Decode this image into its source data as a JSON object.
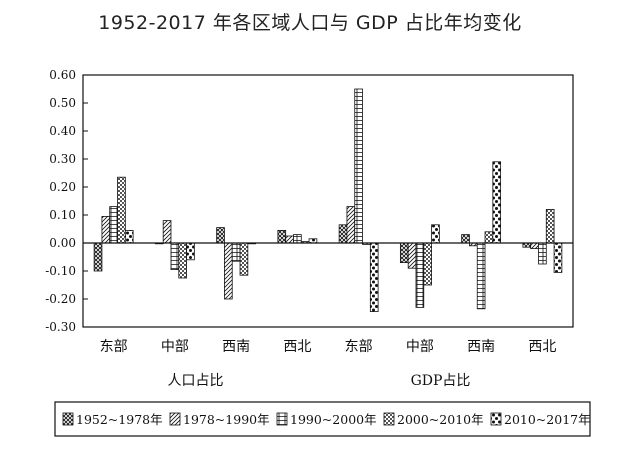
{
  "title": "1952-2017 年各区域人口与 GDP 占比年均变化",
  "chart_data": {
    "type": "bar",
    "title": "1952-2017 年各区域人口与 GDP 占比年均变化",
    "ylim": [
      -0.3,
      0.6
    ],
    "yticks": [
      "0.60",
      "0.50",
      "0.40",
      "0.30",
      "0.20",
      "0.10",
      "0.00",
      "-0.10",
      "-0.20",
      "-0.30"
    ],
    "ytick_values": [
      0.6,
      0.5,
      0.4,
      0.3,
      0.2,
      0.1,
      0.0,
      -0.1,
      -0.2,
      -0.3
    ],
    "grid": false,
    "legend_position": "bottom",
    "groups": [
      {
        "label": "人口占比",
        "categories": [
          "东部",
          "中部",
          "西南",
          "西北"
        ]
      },
      {
        "label": "GDP占比",
        "categories": [
          "东部",
          "中部",
          "西南",
          "西北"
        ]
      }
    ],
    "categories": [
      "东部",
      "中部",
      "西南",
      "西北",
      "东部",
      "中部",
      "西南",
      "西北"
    ],
    "series": [
      {
        "name": "1952~1978年",
        "pattern": "crosshatch",
        "values": [
          -0.1,
          0.0,
          0.055,
          0.045,
          0.065,
          -0.07,
          0.03,
          -0.015
        ]
      },
      {
        "name": "1978~1990年",
        "pattern": "diagonal",
        "values": [
          0.095,
          0.08,
          -0.2,
          0.025,
          0.13,
          -0.09,
          -0.01,
          -0.02
        ]
      },
      {
        "name": "1990~2000年",
        "pattern": "horizontal",
        "values": [
          0.13,
          -0.095,
          -0.065,
          0.03,
          0.55,
          -0.23,
          -0.235,
          -0.075
        ]
      },
      {
        "name": "2000~2010年",
        "pattern": "checker",
        "values": [
          0.235,
          -0.125,
          -0.115,
          0.005,
          -0.005,
          -0.15,
          0.04,
          0.12
        ]
      },
      {
        "name": "2010~2017年",
        "pattern": "dots",
        "values": [
          0.045,
          -0.06,
          0.0,
          0.015,
          -0.245,
          0.065,
          0.29,
          -0.105
        ]
      }
    ]
  }
}
